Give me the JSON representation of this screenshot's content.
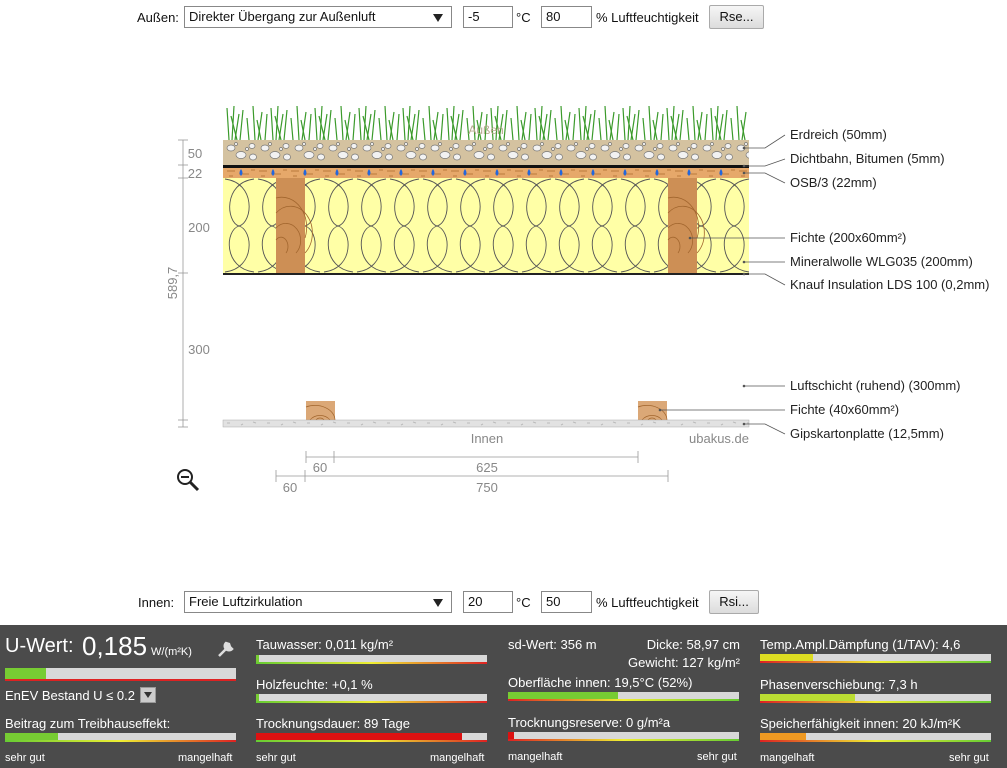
{
  "outside": {
    "label": "Außen:",
    "select": "Direkter Übergang zur Außenluft",
    "temperature": "-5",
    "temperature_unit": "°C",
    "humidity": "80",
    "humidity_unit": "% Luftfeuchtigkeit",
    "button": "Rse..."
  },
  "diagram": {
    "outside_label": "Außen",
    "inside_label": "Innen",
    "watermark": "ubakus.de",
    "thickness_labels": [
      "50",
      "22",
      "200",
      "300"
    ],
    "total_thickness": "589,7",
    "layers": [
      "Erdreich (50mm)",
      "Dichtbahn, Bitumen (5mm)",
      "OSB/3 (22mm)",
      "Fichte (200x60mm²)",
      "Mineralwolle WLG035 (200mm)",
      "Knauf Insulation LDS 100 (0,2mm)",
      "Luftschicht (ruhend) (300mm)",
      "Fichte (40x60mm²)",
      "Gipskartonplatte (12,5mm)"
    ],
    "dimensions": [
      "60",
      "625",
      "60",
      "750"
    ]
  },
  "inside": {
    "label": "Innen:",
    "select": "Freie Luftzirkulation",
    "temperature": "20",
    "temperature_unit": "°C",
    "humidity": "50",
    "humidity_unit": "% Luftfeuchtigkeit",
    "button": "Rsi..."
  },
  "results": {
    "u_label": "U-Wert:",
    "u_value": "0,185",
    "u_unit": "W/(m²K)",
    "enev": "EnEV Bestand U ≤ 0.2",
    "greenhouse": "Beitrag zum Treibhauseffekt:",
    "condensate": "Tauwasser: 0,011 kg/m²",
    "wood_moisture": "Holzfeuchte: +0,1 %",
    "drying_time": "Trocknungsdauer: 89 Tage",
    "sd_value": "sd-Wert: 356 m",
    "thickness": "Dicke: 58,97 cm",
    "weight": "Gewicht: 127 kg/m²",
    "surface_inside": "Oberfläche innen: 19,5°C (52%)",
    "drying_reserve": "Trocknungsreserve: 0 g/m²a",
    "temperature_damping": "Temp.Ampl.Dämpfung (1/TAV): 4,6",
    "phase_shift": "Phasenverschiebung: 7,3 h",
    "heat_capacity": "Speicherfähigkeit innen: 20 kJ/m²K",
    "scales": [
      [
        "sehr gut",
        "mangelhaft"
      ],
      [
        "sehr gut",
        "mangelhaft"
      ],
      [
        "mangelhaft",
        "sehr gut"
      ],
      [
        "mangelhaft",
        "sehr gut"
      ]
    ]
  }
}
